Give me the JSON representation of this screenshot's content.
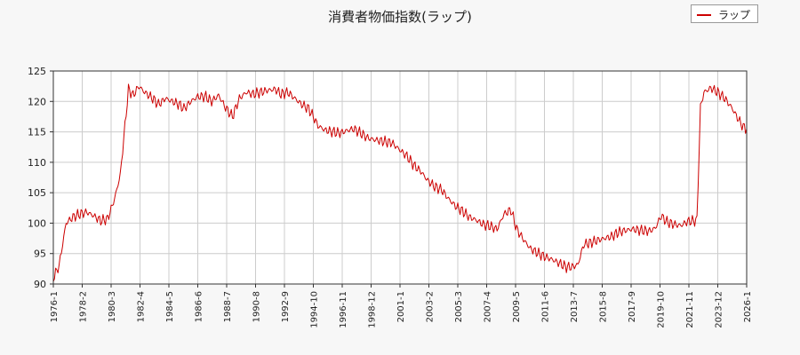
{
  "chart_data": {
    "type": "line",
    "title": "消費者物価指数(ラップ)",
    "xlabel": "",
    "ylabel": "",
    "ylim": [
      90,
      125
    ],
    "y_ticks": [
      90,
      95,
      100,
      105,
      110,
      115,
      120,
      125
    ],
    "x_ticks": [
      "1976-1",
      "1978-2",
      "1980-3",
      "1982-4",
      "1984-5",
      "1986-6",
      "1988-7",
      "1990-8",
      "1992-9",
      "1994-10",
      "1996-11",
      "1998-12",
      "2001-1",
      "2003-2",
      "2005-3",
      "2007-4",
      "2009-5",
      "2011-6",
      "2013-7",
      "2015-8",
      "2017-9",
      "2019-10",
      "2021-11",
      "2023-12",
      "2026-1"
    ],
    "xlim": [
      "1976-01",
      "2026-01"
    ],
    "grid": true,
    "legend_position": "top-right",
    "series": [
      {
        "name": "ラップ",
        "color": "#cc0000",
        "points": [
          [
            "1976-01",
            91.0
          ],
          [
            "1976-06",
            93.0
          ],
          [
            "1976-12",
            100.0
          ],
          [
            "1977-06",
            101.0
          ],
          [
            "1977-12",
            101.5
          ],
          [
            "1978-06",
            101.8
          ],
          [
            "1978-12",
            101.2
          ],
          [
            "1979-06",
            100.4
          ],
          [
            "1979-12",
            100.7
          ],
          [
            "1980-06",
            104.0
          ],
          [
            "1980-11",
            108.0
          ],
          [
            "1981-03",
            116.0
          ],
          [
            "1981-06",
            122.0
          ],
          [
            "1981-10",
            121.0
          ],
          [
            "1982-03",
            122.5
          ],
          [
            "1982-08",
            121.5
          ],
          [
            "1983-03",
            120.5
          ],
          [
            "1983-08",
            119.5
          ],
          [
            "1984-02",
            120.5
          ],
          [
            "1984-08",
            120.0
          ],
          [
            "1985-02",
            119.5
          ],
          [
            "1985-06",
            118.8
          ],
          [
            "1985-12",
            120.0
          ],
          [
            "1986-06",
            120.8
          ],
          [
            "1987-01",
            120.8
          ],
          [
            "1987-06",
            120.0
          ],
          [
            "1987-12",
            121.0
          ],
          [
            "1988-06",
            119.0
          ],
          [
            "1988-12",
            117.5
          ],
          [
            "1989-06",
            120.5
          ],
          [
            "1989-12",
            121.5
          ],
          [
            "1990-06",
            121.2
          ],
          [
            "1990-12",
            121.5
          ],
          [
            "1991-06",
            121.8
          ],
          [
            "1992-01",
            122.0
          ],
          [
            "1992-06",
            121.2
          ],
          [
            "1992-12",
            121.5
          ],
          [
            "1993-06",
            120.5
          ],
          [
            "1993-12",
            119.5
          ],
          [
            "1994-06",
            118.8
          ],
          [
            "1994-10",
            117.5
          ],
          [
            "1995-02",
            116.0
          ],
          [
            "1995-08",
            115.3
          ],
          [
            "1996-03",
            115.0
          ],
          [
            "1996-09",
            114.8
          ],
          [
            "1997-03",
            115.2
          ],
          [
            "1997-09",
            115.5
          ],
          [
            "1998-03",
            114.8
          ],
          [
            "1998-09",
            114.0
          ],
          [
            "1999-03",
            113.7
          ],
          [
            "1999-09",
            113.5
          ],
          [
            "2000-06",
            113.2
          ],
          [
            "2001-01",
            112.0
          ],
          [
            "2001-07",
            111.0
          ],
          [
            "2002-01",
            109.5
          ],
          [
            "2002-07",
            108.5
          ],
          [
            "2003-01",
            107.0
          ],
          [
            "2003-07",
            106.0
          ],
          [
            "2004-01",
            105.5
          ],
          [
            "2004-07",
            104.0
          ],
          [
            "2005-01",
            102.8
          ],
          [
            "2005-07",
            102.0
          ],
          [
            "2006-01",
            101.0
          ],
          [
            "2006-07",
            100.5
          ],
          [
            "2007-01",
            99.8
          ],
          [
            "2007-07",
            99.5
          ],
          [
            "2008-01",
            99.0
          ],
          [
            "2008-07",
            101.5
          ],
          [
            "2009-01",
            102.2
          ],
          [
            "2009-06",
            99.0
          ],
          [
            "2010-01",
            97.0
          ],
          [
            "2010-06",
            95.8
          ],
          [
            "2011-01",
            95.0
          ],
          [
            "2011-06",
            94.5
          ],
          [
            "2012-01",
            94.0
          ],
          [
            "2012-06",
            93.5
          ],
          [
            "2013-01",
            92.8
          ],
          [
            "2013-06",
            92.8
          ],
          [
            "2013-11",
            93.2
          ],
          [
            "2014-04",
            96.5
          ],
          [
            "2014-10",
            96.8
          ],
          [
            "2015-04",
            97.2
          ],
          [
            "2015-10",
            97.5
          ],
          [
            "2016-04",
            97.8
          ],
          [
            "2016-10",
            98.5
          ],
          [
            "2017-04",
            98.8
          ],
          [
            "2017-10",
            99.0
          ],
          [
            "2018-06",
            98.8
          ],
          [
            "2019-01",
            98.7
          ],
          [
            "2019-06",
            99.2
          ],
          [
            "2019-11",
            101.2
          ],
          [
            "2020-04",
            100.2
          ],
          [
            "2020-10",
            99.8
          ],
          [
            "2021-04",
            99.6
          ],
          [
            "2021-10",
            100.3
          ],
          [
            "2022-04",
            100.4
          ],
          [
            "2022-06",
            100.5
          ],
          [
            "2022-09",
            119.0
          ],
          [
            "2022-12",
            121.5
          ],
          [
            "2023-06",
            122.2
          ],
          [
            "2023-12",
            121.5
          ],
          [
            "2024-06",
            120.5
          ],
          [
            "2024-12",
            119.0
          ],
          [
            "2025-06",
            117.0
          ],
          [
            "2025-10",
            115.8
          ],
          [
            "2026-01",
            115.5
          ]
        ]
      }
    ]
  }
}
